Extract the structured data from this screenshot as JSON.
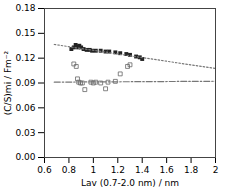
{
  "chart_data": {
    "type": "scatter",
    "xlabel": "Lav (0.7-2.0 nm) / nm",
    "ylabel": "(C/S)mi / Fm⁻²",
    "xlim": [
      0.6,
      2.0
    ],
    "ylim": [
      0,
      0.18
    ],
    "xticks": [
      0.6,
      0.8,
      1,
      1.2,
      1.4,
      1.6,
      1.8,
      2
    ],
    "yticks": [
      {
        "value": 0,
        "label": "0.00"
      },
      0.03,
      0.06,
      0.09,
      0.12,
      0.15,
      0.18
    ],
    "grid": false,
    "series": [
      {
        "type": "scatter",
        "marker": "square",
        "color": "#222222",
        "x": [
          0.82,
          0.84,
          0.855,
          0.865,
          0.875,
          0.885,
          0.9,
          0.92,
          0.945,
          0.97,
          0.99,
          1.02,
          1.06,
          1.1,
          1.13,
          1.18,
          1.22,
          1.27,
          1.3,
          1.35,
          1.38,
          1.4
        ],
        "values": [
          0.131,
          0.133,
          0.136,
          0.134,
          0.133,
          0.135,
          0.133,
          0.131,
          0.13,
          0.13,
          0.129,
          0.129,
          0.129,
          0.128,
          0.128,
          0.127,
          0.126,
          0.125,
          0.124,
          0.122,
          0.121,
          0.119
        ]
      },
      {
        "type": "scatter",
        "marker": "open_square",
        "color": "#666666",
        "x": [
          0.84,
          0.86,
          0.87,
          0.88,
          0.895,
          0.91,
          0.93,
          0.98,
          1.0,
          1.02,
          1.06,
          1.1,
          1.12,
          1.18,
          1.22,
          1.28,
          1.3
        ],
        "values": [
          0.113,
          0.11,
          0.095,
          0.091,
          0.09,
          0.09,
          0.082,
          0.091,
          0.09,
          0.091,
          0.09,
          0.083,
          0.091,
          0.092,
          0.101,
          0.11,
          0.112
        ]
      },
      {
        "type": "line",
        "line_style": "dotted",
        "color": "#777777",
        "x": [
          0.68,
          2.0
        ],
        "values": [
          0.13654,
          0.1075
        ]
      },
      {
        "type": "line",
        "line_style": "dashdot",
        "color": "#777777",
        "x": [
          0.68,
          2.0
        ],
        "values": [
          0.091044,
          0.0921
        ]
      }
    ]
  }
}
